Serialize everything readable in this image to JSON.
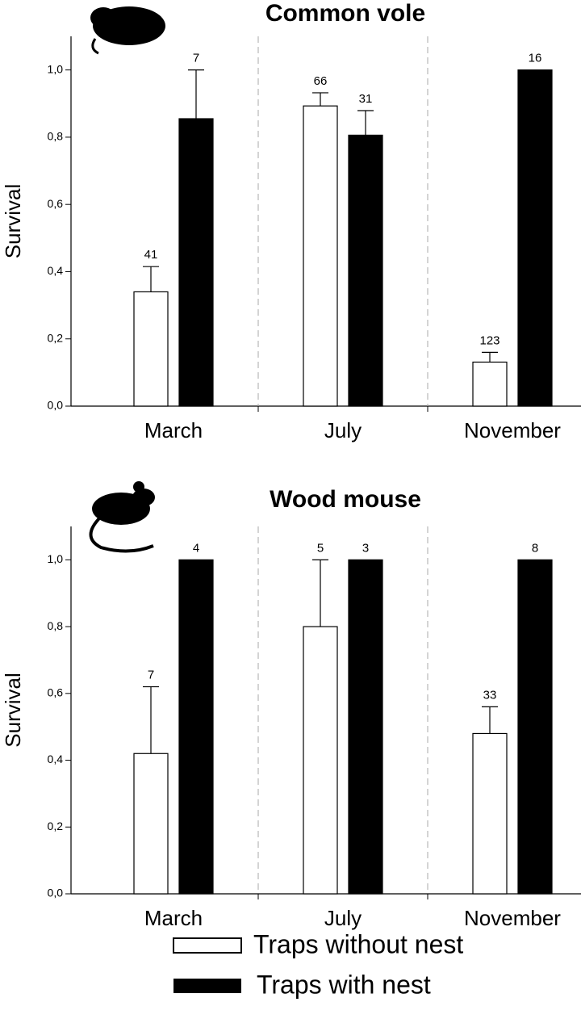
{
  "chart_data": [
    {
      "type": "bar",
      "title": "Common vole",
      "y_label": "Survival",
      "categories": [
        "March",
        "July",
        "November"
      ],
      "ylim": [
        0,
        1.1
      ],
      "yticks": [
        {
          "value": 0,
          "label": "0,0"
        },
        {
          "value": 0.2,
          "label": "0,2"
        },
        {
          "value": 0.4,
          "label": "0,4"
        },
        {
          "value": 0.6,
          "label": "0,6"
        },
        {
          "value": 0.8,
          "label": "0,8"
        },
        {
          "value": 1,
          "label": "1,0"
        }
      ],
      "series": [
        {
          "name": "Traps without nest",
          "color": "#ffffff",
          "values": [
            0.34,
            0.893,
            0.131
          ],
          "errors": [
            0.075,
            0.039,
            0.029
          ],
          "counts": [
            41,
            66,
            123
          ]
        },
        {
          "name": "Traps with nest",
          "color": "#000000",
          "values": [
            0.855,
            0.806,
            1
          ],
          "errors": [
            0.145,
            0.073,
            0
          ],
          "counts": [
            7,
            31,
            16
          ]
        }
      ]
    },
    {
      "type": "bar",
      "title": "Wood mouse",
      "y_label": "Survival",
      "categories": [
        "March",
        "July",
        "November"
      ],
      "ylim": [
        0,
        1.1
      ],
      "yticks": [
        {
          "value": 0,
          "label": "0,0"
        },
        {
          "value": 0.2,
          "label": "0,2"
        },
        {
          "value": 0.4,
          "label": "0,4"
        },
        {
          "value": 0.6,
          "label": "0,6"
        },
        {
          "value": 0.8,
          "label": "0,8"
        },
        {
          "value": 1,
          "label": "1,0"
        }
      ],
      "series": [
        {
          "color": "#ffffff",
          "values": [
            0.42,
            0.8,
            0.48
          ],
          "errors": [
            0.2,
            0.2,
            0.08
          ],
          "counts": [
            7,
            5,
            33
          ]
        },
        {
          "color": "#000000",
          "values": [
            1,
            1,
            1
          ],
          "errors": [
            0,
            0,
            0
          ],
          "counts": [
            4,
            3,
            8
          ]
        }
      ]
    }
  ]
}
